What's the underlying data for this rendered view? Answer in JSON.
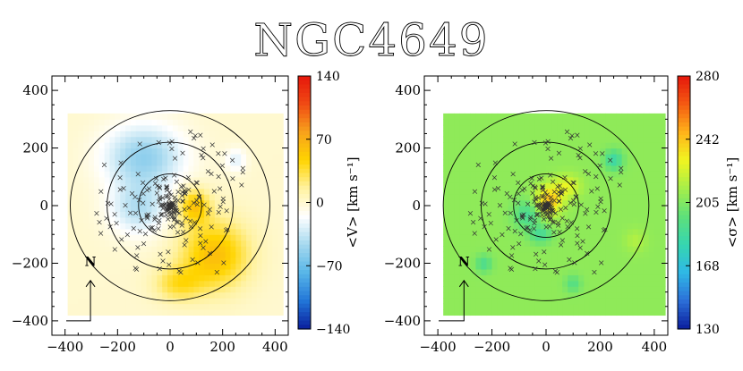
{
  "title": "NGC4649",
  "chart_data": [
    {
      "type": "heatmap",
      "name": "velocity-map",
      "quantity": "<V>",
      "xlim": [
        -450,
        450
      ],
      "ylim": [
        -450,
        450
      ],
      "x_ticks": [
        "−400",
        "−200",
        "0",
        "200",
        "400"
      ],
      "y_ticks": [
        "400",
        "200",
        "0",
        "−200",
        "−400"
      ],
      "grid_extent": {
        "x": [
          -390,
          420
        ],
        "y": [
          -380,
          320
        ]
      },
      "ellipses": [
        {
          "a": 120,
          "b": 110
        },
        {
          "a": 240,
          "b": 220
        },
        {
          "a": 380,
          "b": 330
        }
      ],
      "features": [
        {
          "x": -100,
          "y": 170,
          "sx": 150,
          "sy": 110,
          "amp": -55
        },
        {
          "x": -120,
          "y": -10,
          "sx": 110,
          "sy": 90,
          "amp": -40
        },
        {
          "x": 90,
          "y": 0,
          "sx": 60,
          "sy": 60,
          "amp": 55
        },
        {
          "x": 170,
          "y": -170,
          "sx": 130,
          "sy": 120,
          "amp": 60
        },
        {
          "x": 30,
          "y": -270,
          "sx": 90,
          "sy": 60,
          "amp": 35
        },
        {
          "x": 250,
          "y": 160,
          "sx": 40,
          "sy": 40,
          "amp": -25
        }
      ],
      "base": 0,
      "colorbar": {
        "min": -140,
        "max": 140,
        "ticks": [
          "140",
          "70",
          "0",
          "−70",
          "−140"
        ],
        "label": "<V>  [km s⁻¹]",
        "colors": [
          "#0a1e9c",
          "#2276d8",
          "#58b6e8",
          "#a6d9ef",
          "#ffffff",
          "#fff2a0",
          "#ffd400",
          "#f7a21c",
          "#f04a14",
          "#e6170b"
        ]
      },
      "north_label": "N"
    },
    {
      "type": "heatmap",
      "name": "dispersion-map",
      "quantity": "<σ>",
      "xlim": [
        -450,
        450
      ],
      "ylim": [
        -450,
        450
      ],
      "x_ticks": [
        "−400",
        "−200",
        "0",
        "200",
        "400"
      ],
      "y_ticks": [
        "400",
        "200",
        "0",
        "−200",
        "−400"
      ],
      "grid_extent": {
        "x": [
          -380,
          430
        ],
        "y": [
          -380,
          320
        ]
      },
      "ellipses": [
        {
          "a": 120,
          "b": 110
        },
        {
          "a": 240,
          "b": 220
        },
        {
          "a": 380,
          "b": 330
        }
      ],
      "features": [
        {
          "x": 10,
          "y": 20,
          "sx": 50,
          "sy": 50,
          "amp": 35
        },
        {
          "x": 80,
          "y": 70,
          "sx": 50,
          "sy": 40,
          "amp": 18
        },
        {
          "x": -70,
          "y": -30,
          "sx": 50,
          "sy": 50,
          "amp": -20
        },
        {
          "x": -20,
          "y": -100,
          "sx": 40,
          "sy": 30,
          "amp": -20
        },
        {
          "x": 250,
          "y": 160,
          "sx": 35,
          "sy": 35,
          "amp": -25
        },
        {
          "x": -230,
          "y": -200,
          "sx": 30,
          "sy": 30,
          "amp": -18
        },
        {
          "x": 100,
          "y": -270,
          "sx": 30,
          "sy": 30,
          "amp": -15
        },
        {
          "x": 330,
          "y": -120,
          "sx": 40,
          "sy": 40,
          "amp": 8
        }
      ],
      "base": 208,
      "colorbar": {
        "min": 130,
        "max": 280,
        "ticks": [
          "280",
          "242",
          "205",
          "168",
          "130"
        ],
        "label": "<σ>  [km s⁻¹]",
        "colors": [
          "#0a1e9c",
          "#2c6fd8",
          "#2fb8e6",
          "#36d6b0",
          "#5ee07a",
          "#a6ef4a",
          "#f1f520",
          "#ffb21a",
          "#f45a12",
          "#e6170b"
        ]
      },
      "north_label": "N"
    }
  ]
}
